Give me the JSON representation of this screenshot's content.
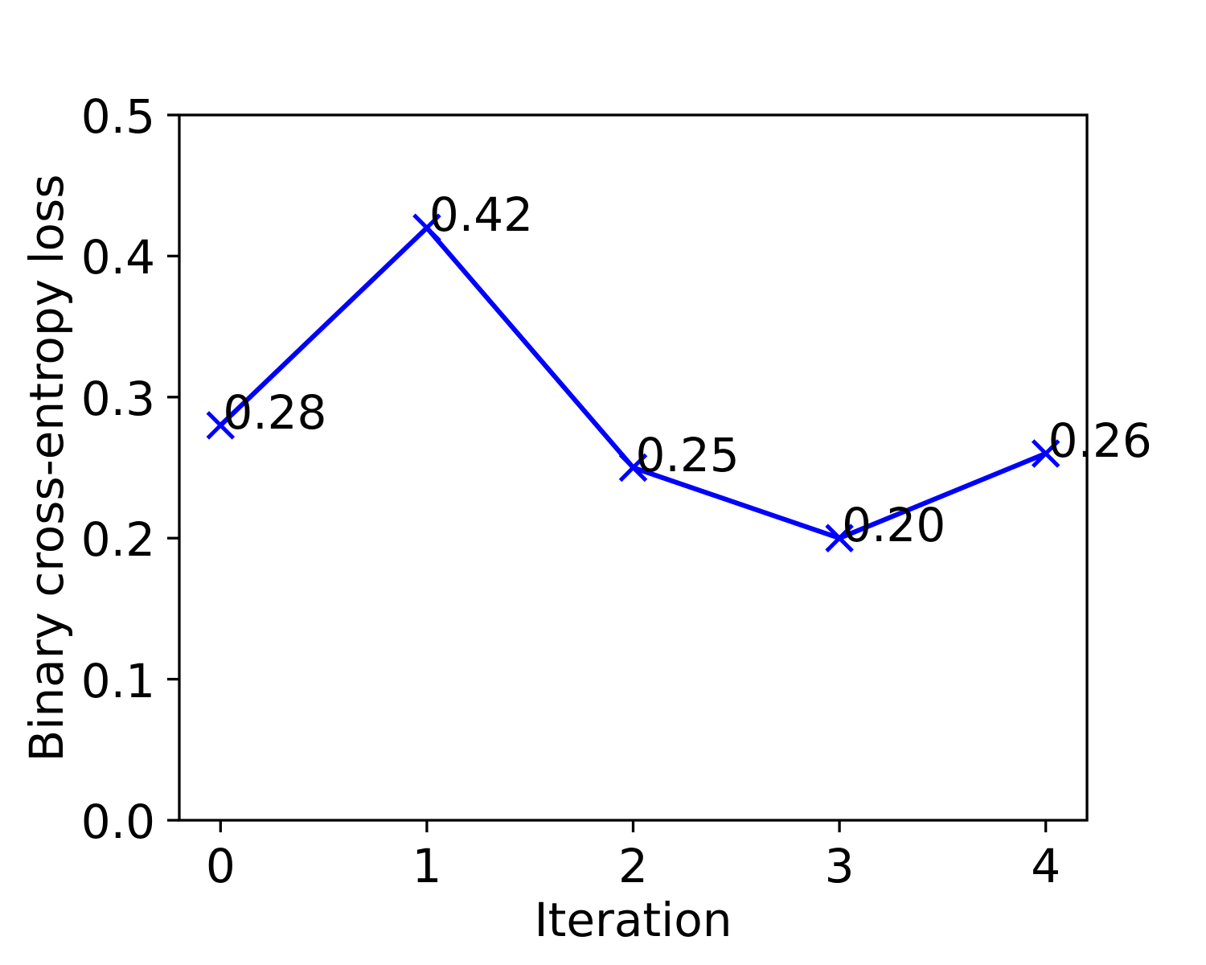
{
  "chart_data": {
    "type": "line",
    "title": "",
    "xlabel": "Iteration",
    "ylabel": "Binary cross-entropy loss",
    "x": [
      0,
      1,
      2,
      3,
      4
    ],
    "series": [
      {
        "name": "binary-cross-entropy-loss",
        "values": [
          0.28,
          0.42,
          0.25,
          0.2,
          0.26
        ]
      }
    ],
    "point_labels": [
      "0.28",
      "0.42",
      "0.25",
      "0.20",
      "0.26"
    ],
    "xtick_labels": [
      "0",
      "1",
      "2",
      "3",
      "4"
    ],
    "xtick_values": [
      0,
      1,
      2,
      3,
      4
    ],
    "ytick_labels": [
      "0.0",
      "0.1",
      "0.2",
      "0.3",
      "0.4",
      "0.5"
    ],
    "ytick_values": [
      0.0,
      0.1,
      0.2,
      0.3,
      0.4,
      0.5
    ],
    "xlim": [
      -0.2,
      4.2
    ],
    "ylim": [
      0.0,
      0.5
    ],
    "grid": false,
    "legend": null,
    "line_color": "#0000ff",
    "marker": "x",
    "axis_color": "#000000",
    "background_color": "#ffffff"
  }
}
